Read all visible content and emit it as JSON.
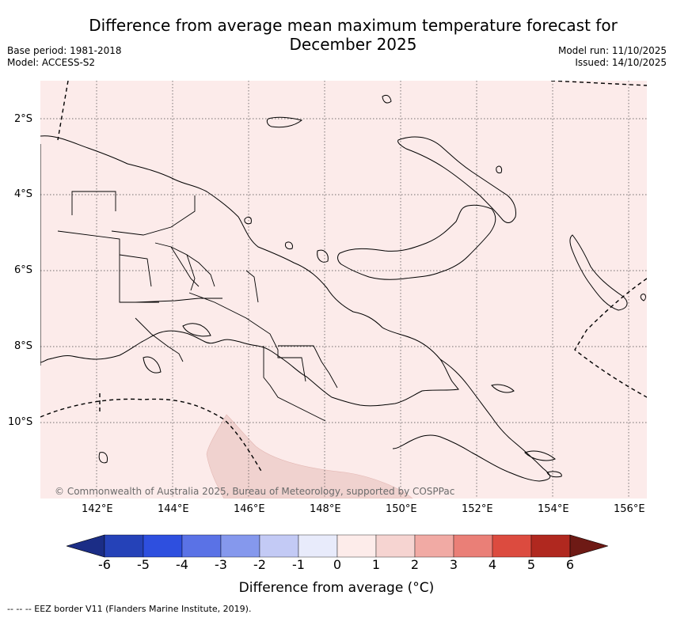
{
  "title_line1": "Difference from average mean maximum temperature forecast for",
  "title_line2": "December 2025",
  "base_period": "Base period: 1981-2018",
  "model": "Model: ACCESS-S2",
  "model_run": "Model run: 11/10/2025",
  "issued": "Issued: 14/10/2025",
  "copyright": "© Commonwealth of Australia 2025, Bureau of Meteorology, supported by COSPPac",
  "map": {
    "lon_ticks": [
      "142°E",
      "144°E",
      "146°E",
      "148°E",
      "150°E",
      "152°E",
      "154°E",
      "156°E"
    ],
    "lat_ticks": [
      "2°S",
      "4°S",
      "6°S",
      "8°S",
      "10°S"
    ],
    "background_color": "#fcebea"
  },
  "legend": {
    "title": "Difference from average (°C)",
    "ticks": [
      "-6",
      "-5",
      "-4",
      "-3",
      "-2",
      "-1",
      "0",
      "1",
      "2",
      "3",
      "4",
      "5",
      "6"
    ],
    "colors": [
      "#1b2d86",
      "#2542b8",
      "#2e4fdf",
      "#5a72e6",
      "#8598ed",
      "#c3caf5",
      "#e8ebfb",
      "#fdecea",
      "#f6d4d1",
      "#f1aaa4",
      "#ea7f77",
      "#dc4b3f",
      "#b0281f",
      "#6e1a15"
    ]
  },
  "footer": "--  --  -- EEZ border V11 (Flanders Marine Institute, 2019)."
}
